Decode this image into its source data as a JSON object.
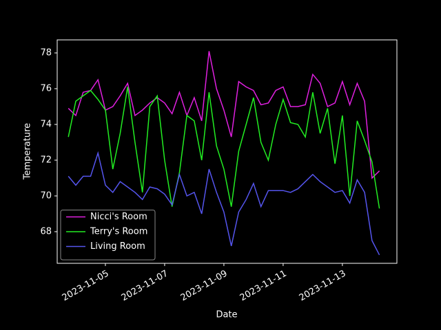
{
  "chart_data": {
    "type": "line",
    "x_label": "Date",
    "y_label": "Temperature",
    "x": [
      "2023-11-03T18:00",
      "2023-11-04T00:00",
      "2023-11-04T06:00",
      "2023-11-04T12:00",
      "2023-11-04T18:00",
      "2023-11-05T00:00",
      "2023-11-05T06:00",
      "2023-11-05T12:00",
      "2023-11-05T18:00",
      "2023-11-06T00:00",
      "2023-11-06T06:00",
      "2023-11-06T12:00",
      "2023-11-06T18:00",
      "2023-11-07T00:00",
      "2023-11-07T06:00",
      "2023-11-07T12:00",
      "2023-11-07T18:00",
      "2023-11-08T00:00",
      "2023-11-08T06:00",
      "2023-11-08T12:00",
      "2023-11-08T18:00",
      "2023-11-09T00:00",
      "2023-11-09T06:00",
      "2023-11-09T12:00",
      "2023-11-09T18:00",
      "2023-11-10T00:00",
      "2023-11-10T06:00",
      "2023-11-10T12:00",
      "2023-11-10T18:00",
      "2023-11-11T00:00",
      "2023-11-11T06:00",
      "2023-11-11T12:00",
      "2023-11-11T18:00",
      "2023-11-12T00:00",
      "2023-11-12T06:00",
      "2023-11-12T12:00",
      "2023-11-12T18:00",
      "2023-11-13T00:00",
      "2023-11-13T06:00",
      "2023-11-13T12:00",
      "2023-11-13T18:00",
      "2023-11-14T00:00",
      "2023-11-14T06:00"
    ],
    "series": [
      {
        "name": "Nicci's Room",
        "color": "#e020e0",
        "values": [
          74.9,
          74.5,
          75.8,
          75.9,
          76.5,
          74.8,
          75.0,
          75.6,
          76.3,
          74.5,
          74.8,
          75.2,
          75.5,
          75.2,
          74.6,
          75.8,
          74.5,
          75.5,
          74.2,
          78.1,
          76.0,
          74.8,
          73.3,
          76.4,
          76.1,
          75.9,
          75.1,
          75.2,
          75.9,
          76.1,
          75.0,
          75.0,
          75.1,
          76.8,
          76.3,
          75.0,
          75.2,
          76.4,
          75.1,
          76.3,
          75.3,
          71.0,
          71.4
        ]
      },
      {
        "name": "Terry's Room",
        "color": "#22ee22",
        "values": [
          73.3,
          75.3,
          75.6,
          75.9,
          75.4,
          74.8,
          71.5,
          73.5,
          76.1,
          73.0,
          70.2,
          75.0,
          75.6,
          72.0,
          69.4,
          71.3,
          74.5,
          74.2,
          72.0,
          75.8,
          72.8,
          71.5,
          69.4,
          72.5,
          74.0,
          75.5,
          73.0,
          72.0,
          74.0,
          75.4,
          74.1,
          74.0,
          73.3,
          75.8,
          73.5,
          74.9,
          71.8,
          74.5,
          70.0,
          74.2,
          73.1,
          71.9,
          69.3
        ]
      },
      {
        "name": "Living Room",
        "color": "#5555ee",
        "values": [
          71.1,
          70.6,
          71.1,
          71.1,
          72.4,
          70.6,
          70.2,
          70.8,
          70.5,
          70.2,
          69.8,
          70.5,
          70.4,
          70.1,
          69.5,
          71.2,
          70.0,
          70.2,
          69.0,
          71.5,
          70.2,
          69.1,
          67.2,
          69.1,
          69.8,
          70.7,
          69.4,
          70.3,
          70.3,
          70.3,
          70.2,
          70.4,
          70.8,
          71.2,
          70.8,
          70.5,
          70.2,
          70.3,
          69.6,
          70.9,
          70.2,
          67.5,
          66.7
        ]
      }
    ],
    "xlim": [
      "2023-11-03T08:57",
      "2023-11-14T20:10"
    ],
    "xticks": [
      {
        "value": "2023-11-05T00:00",
        "label": "2023-11-05"
      },
      {
        "value": "2023-11-07T00:00",
        "label": "2023-11-07"
      },
      {
        "value": "2023-11-09T00:00",
        "label": "2023-11-09"
      },
      {
        "value": "2023-11-11T00:00",
        "label": "2023-11-11"
      },
      {
        "value": "2023-11-13T00:00",
        "label": "2023-11-13"
      }
    ],
    "ylim": [
      66.23,
      78.73
    ],
    "yticks": [
      68,
      70,
      72,
      74,
      76,
      78
    ],
    "legend": "lower left"
  }
}
